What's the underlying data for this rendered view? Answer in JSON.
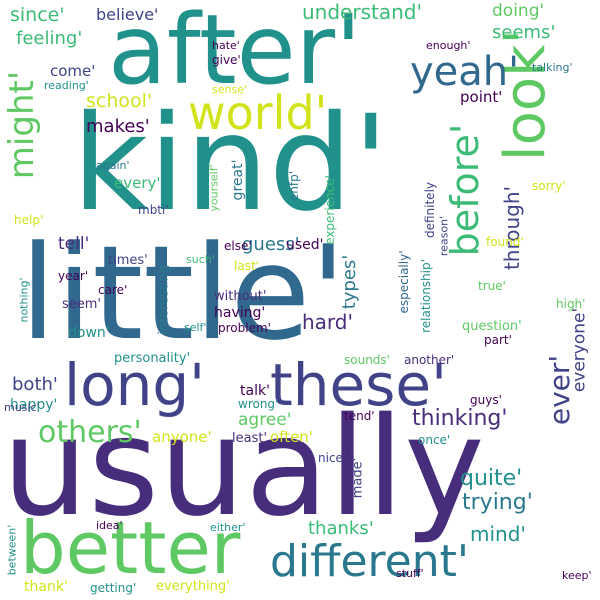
{
  "palette": {
    "yellow": "#d2e21b",
    "lightgreen": "#5ec962",
    "green": "#3bbb75",
    "teal": "#21918c",
    "tealblue": "#2a788e",
    "blue": "#31688e",
    "indigo": "#404387",
    "purple": "#472d7b",
    "deeppurple": "#440154"
  },
  "words": [
    {
      "text": "after'",
      "color": "#21918c"
    },
    {
      "text": "kind'",
      "color": "#21918c"
    },
    {
      "text": "little'",
      "color": "#31688e"
    },
    {
      "text": "usually",
      "color": "#472d7b"
    },
    {
      "text": "better",
      "color": "#5ec962"
    },
    {
      "text": "long'",
      "color": "#404387"
    },
    {
      "text": "these'",
      "color": "#404387"
    },
    {
      "text": "different'",
      "color": "#2a788e"
    },
    {
      "text": "world'",
      "color": "#d2e21b"
    },
    {
      "text": "look'",
      "color": "#5ec962"
    },
    {
      "text": "might'",
      "color": "#5ec962"
    },
    {
      "text": "yeah'",
      "color": "#31688e"
    },
    {
      "text": "before'",
      "color": "#3bbb75"
    },
    {
      "text": "ever'",
      "color": "#404387"
    },
    {
      "text": "others'",
      "color": "#5ec962"
    },
    {
      "text": "understand'",
      "color": "#3bbb75"
    },
    {
      "text": "since'",
      "color": "#3bbb75"
    },
    {
      "text": "believe'",
      "color": "#404387"
    },
    {
      "text": "feeling'",
      "color": "#3bbb75"
    },
    {
      "text": "doing'",
      "color": "#5ec962"
    },
    {
      "text": "seems'",
      "color": "#3bbb75"
    },
    {
      "text": "school'",
      "color": "#d2e21b"
    },
    {
      "text": "makes'",
      "color": "#440154"
    },
    {
      "text": "come'",
      "color": "#404387"
    },
    {
      "text": "point'",
      "color": "#440154"
    },
    {
      "text": "every'",
      "color": "#3bbb75"
    },
    {
      "text": "through'",
      "color": "#404387"
    },
    {
      "text": "guess'",
      "color": "#2a788e"
    },
    {
      "text": "used'",
      "color": "#440154"
    },
    {
      "text": "tell'",
      "color": "#472d7b"
    },
    {
      "text": "hard'",
      "color": "#472d7b"
    },
    {
      "text": "types'",
      "color": "#2a788e"
    },
    {
      "text": "thinking'",
      "color": "#472d7b"
    },
    {
      "text": "quite'",
      "color": "#21918c"
    },
    {
      "text": "trying'",
      "color": "#2a788e"
    },
    {
      "text": "mind'",
      "color": "#21918c"
    },
    {
      "text": "thanks'",
      "color": "#3bbb75"
    },
    {
      "text": "both'",
      "color": "#404387"
    },
    {
      "text": "happy'",
      "color": "#21918c"
    },
    {
      "text": "agree'",
      "color": "#5ec962"
    },
    {
      "text": "talk'",
      "color": "#440154"
    },
    {
      "text": "wrong'",
      "color": "#21918c"
    },
    {
      "text": "anyone'",
      "color": "#d2e21b"
    },
    {
      "text": "often'",
      "color": "#d2e21b"
    },
    {
      "text": "least'",
      "color": "#472d7b"
    },
    {
      "text": "nice'",
      "color": "#404387"
    },
    {
      "text": "made'",
      "color": "#404387"
    },
    {
      "text": "everyone'",
      "color": "#404387"
    },
    {
      "text": "great'",
      "color": "#2a788e"
    },
    {
      "text": "having'",
      "color": "#440154"
    },
    {
      "text": "without'",
      "color": "#472d7b"
    },
    {
      "text": "problem'",
      "color": "#440154"
    },
    {
      "text": "seem'",
      "color": "#472d7b"
    },
    {
      "text": "down'",
      "color": "#21918c"
    },
    {
      "text": "personality'",
      "color": "#21918c"
    },
    {
      "text": "interesting'",
      "color": "#2a788e"
    },
    {
      "text": "definitely",
      "color": "#404387"
    },
    {
      "text": "reason'",
      "color": "#404387"
    },
    {
      "text": "especially'",
      "color": "#31688e"
    },
    {
      "text": "relationship'",
      "color": "#21918c"
    },
    {
      "text": "question'",
      "color": "#5ec962"
    },
    {
      "text": "part'",
      "color": "#440154"
    },
    {
      "text": "sounds'",
      "color": "#5ec962"
    },
    {
      "text": "another'",
      "color": "#472d7b"
    },
    {
      "text": "tend'",
      "color": "#440154"
    },
    {
      "text": "guys'",
      "color": "#440154"
    },
    {
      "text": "once'",
      "color": "#21918c"
    },
    {
      "text": "high'",
      "color": "#5ec962"
    },
    {
      "text": "true'",
      "color": "#5ec962"
    },
    {
      "text": "found'",
      "color": "#d2e21b"
    },
    {
      "text": "sorry'",
      "color": "#d2e21b"
    },
    {
      "text": "experience'",
      "color": "#3bbb75"
    },
    {
      "text": "enfp'",
      "color": "#2a788e"
    },
    {
      "text": "yourself'",
      "color": "#5ec962"
    },
    {
      "text": "again'",
      "color": "#2a788e"
    },
    {
      "text": "mbti'",
      "color": "#404387"
    },
    {
      "text": "help'",
      "color": "#d2e21b"
    },
    {
      "text": "times'",
      "color": "#404387"
    },
    {
      "text": "year'",
      "color": "#440154"
    },
    {
      "text": "care'",
      "color": "#440154"
    },
    {
      "text": "such'",
      "color": "#3bbb75"
    },
    {
      "text": "else'",
      "color": "#440154"
    },
    {
      "text": "last'",
      "color": "#d2e21b"
    },
    {
      "text": "self'",
      "color": "#21918c"
    },
    {
      "text": "nothing'",
      "color": "#21918c"
    },
    {
      "text": "music'",
      "color": "#404387"
    },
    {
      "text": "hate'",
      "color": "#440154"
    },
    {
      "text": "give'",
      "color": "#440154"
    },
    {
      "text": "enough'",
      "color": "#440154"
    },
    {
      "text": "talking'",
      "color": "#2a788e"
    },
    {
      "text": "reading'",
      "color": "#21918c"
    },
    {
      "text": "sense'",
      "color": "#d2e21b"
    },
    {
      "text": "idea'",
      "color": "#440154"
    },
    {
      "text": "either'",
      "color": "#21918c"
    },
    {
      "text": "stuff'",
      "color": "#440154"
    },
    {
      "text": "keep'",
      "color": "#440154"
    },
    {
      "text": "between'",
      "color": "#21918c"
    },
    {
      "text": "thank'",
      "color": "#d2e21b"
    },
    {
      "text": "getting'",
      "color": "#21918c"
    },
    {
      "text": "everything'",
      "color": "#d2e21b"
    }
  ]
}
